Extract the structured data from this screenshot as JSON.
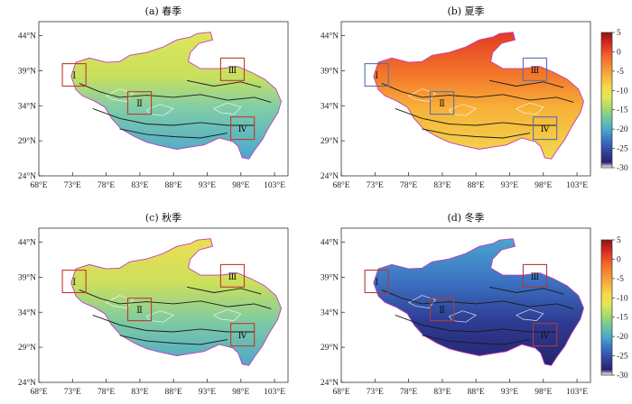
{
  "panels": [
    {
      "title": "(a) 春季",
      "scheme": "spring"
    },
    {
      "title": "(b) 夏季",
      "scheme": "summer"
    },
    {
      "title": "(c) 秋季",
      "scheme": "autumn"
    },
    {
      "title": "(d) 冬季",
      "scheme": "winter"
    }
  ],
  "lat_ticks": [
    "44°N",
    "39°N",
    "34°N",
    "29°N",
    "24°N"
  ],
  "lon_ticks": [
    "68°E",
    "73°E",
    "78°E",
    "83°E",
    "88°E",
    "93°E",
    "98°E",
    "103°E"
  ],
  "regions": [
    "Ⅰ",
    "Ⅱ",
    "Ⅲ",
    "Ⅳ"
  ],
  "colorbar": {
    "ticks": [
      "5",
      "0",
      "-5",
      "-10",
      "-15",
      "-20",
      "-25",
      "-30"
    ],
    "colors": [
      "#8b1414",
      "#d62a1f",
      "#f26a2a",
      "#f7a538",
      "#f5d84a",
      "#dfe65a",
      "#a8d96a",
      "#6cc7a0",
      "#4aa6cf",
      "#3b70c0",
      "#31459e",
      "#26236e",
      "#ffffff"
    ]
  }
}
